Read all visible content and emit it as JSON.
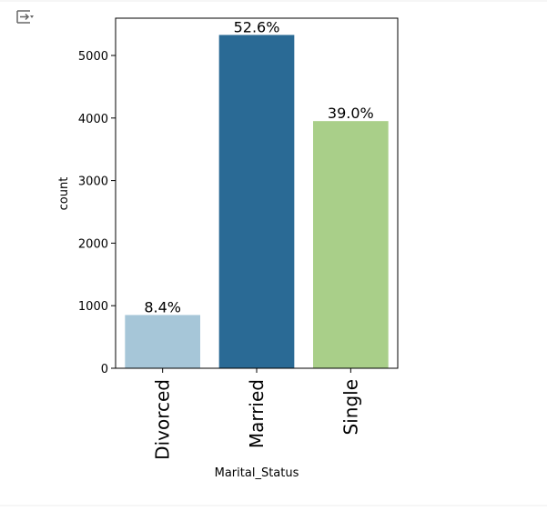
{
  "chart_data": {
    "type": "bar",
    "categories": [
      "Divorced",
      "Married",
      "Single"
    ],
    "values": [
      851,
      5328,
      3951
    ],
    "percent_labels": [
      "8.4%",
      "52.6%",
      "39.0%"
    ],
    "colors": [
      "#a6c6d8",
      "#2a6a95",
      "#a9cf89"
    ],
    "x_label": "Marital_Status",
    "y_label": "count",
    "ylim": [
      0,
      5596
    ],
    "yticks": [
      0,
      1000,
      2000,
      3000,
      4000,
      5000
    ]
  }
}
